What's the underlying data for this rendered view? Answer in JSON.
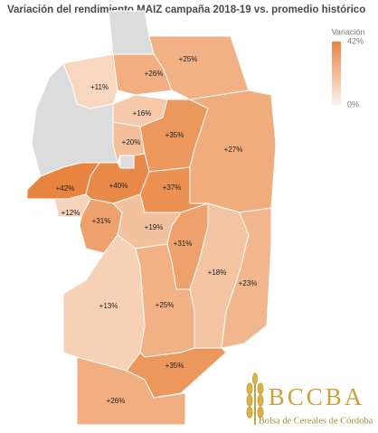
{
  "title": "Variación del rendimiento MAIZ campaña 2018-19 vs. promedio histórico",
  "legend": {
    "title": "Variación",
    "max": {
      "value": 42,
      "label": "42%"
    },
    "min": {
      "value": 0,
      "label": "0%"
    },
    "low_color": "#fdf3ec",
    "high_color": "#e8843f"
  },
  "regions": [
    {
      "value": 25,
      "label": "+25%"
    },
    {
      "value": 26,
      "label": "+26%"
    },
    {
      "value": 11,
      "label": "+11%"
    },
    {
      "value": 16,
      "label": "+16%"
    },
    {
      "value": 20,
      "label": "+20%"
    },
    {
      "value": 35,
      "label": "+35%"
    },
    {
      "value": 27,
      "label": "+27%"
    },
    {
      "value": 42,
      "label": "+42%"
    },
    {
      "value": 40,
      "label": "+40%"
    },
    {
      "value": 37,
      "label": "+37%"
    },
    {
      "value": 12,
      "label": "+12%"
    },
    {
      "value": 31,
      "label": "+31%"
    },
    {
      "value": 19,
      "label": "+19%"
    },
    {
      "value": 31,
      "label": "+31%"
    },
    {
      "value": 18,
      "label": "+18%"
    },
    {
      "value": 23,
      "label": "+23%"
    },
    {
      "value": 13,
      "label": "+13%"
    },
    {
      "value": 25,
      "label": "+25%"
    },
    {
      "value": 35,
      "label": "+35%"
    },
    {
      "value": 26,
      "label": "+26%"
    }
  ],
  "logo": {
    "name": "BCCBA",
    "subtitle": "Bolsa de Cereales de Córdoba"
  }
}
